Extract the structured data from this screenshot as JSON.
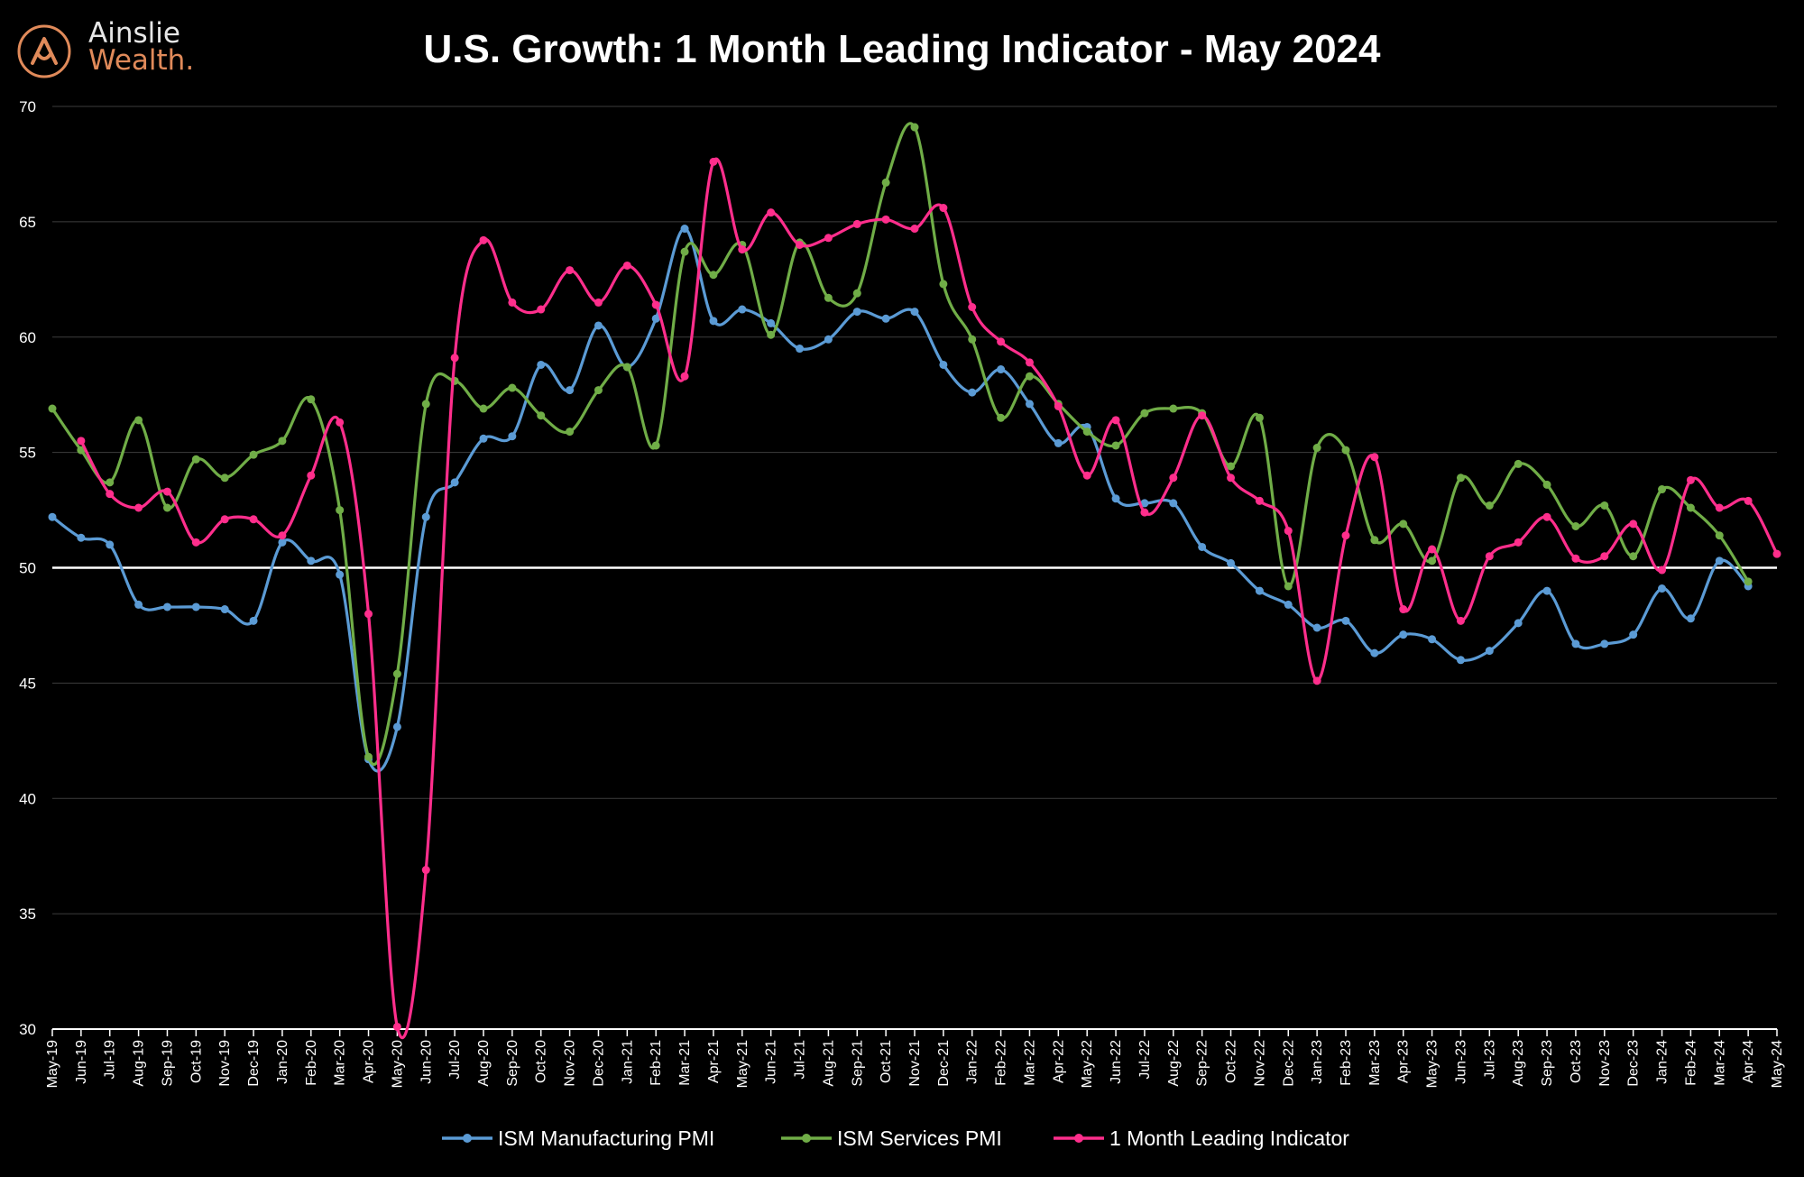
{
  "brand": {
    "name_line1": "Ainslie",
    "name_line2": "Wealth.",
    "logo_color": "#e08a5a"
  },
  "chart_data": {
    "type": "line",
    "title": "U.S. Growth: 1 Month Leading Indicator - May 2024",
    "xlabel": "",
    "ylabel": "",
    "ylim": [
      30,
      70
    ],
    "yticks": [
      30,
      35,
      40,
      45,
      50,
      55,
      60,
      65,
      70
    ],
    "grid": true,
    "legend_position": "bottom-center",
    "reference_line": {
      "y": 50,
      "color": "#ffffff"
    },
    "categories": [
      "May-19",
      "Jun-19",
      "Jul-19",
      "Aug-19",
      "Sep-19",
      "Oct-19",
      "Nov-19",
      "Dec-19",
      "Jan-20",
      "Feb-20",
      "Mar-20",
      "Apr-20",
      "May-20",
      "Jun-20",
      "Jul-20",
      "Aug-20",
      "Sep-20",
      "Oct-20",
      "Nov-20",
      "Dec-20",
      "Jan-21",
      "Feb-21",
      "Mar-21",
      "Apr-21",
      "May-21",
      "Jun-21",
      "Jul-21",
      "Aug-21",
      "Sep-21",
      "Oct-21",
      "Nov-21",
      "Dec-21",
      "Jan-22",
      "Feb-22",
      "Mar-22",
      "Apr-22",
      "May-22",
      "Jun-22",
      "Jul-22",
      "Aug-22",
      "Sep-22",
      "Oct-22",
      "Nov-22",
      "Dec-22",
      "Jan-23",
      "Feb-23",
      "Mar-23",
      "Apr-23",
      "May-23",
      "Jun-23",
      "Jul-23",
      "Aug-23",
      "Sep-23",
      "Oct-23",
      "Nov-23",
      "Dec-23",
      "Jan-24",
      "Feb-24",
      "Mar-24",
      "Apr-24",
      "May-24"
    ],
    "series": [
      {
        "name": "ISM Manufacturing PMI",
        "color": "#5b9bd5",
        "values": [
          52.2,
          51.3,
          51.0,
          48.4,
          48.3,
          48.3,
          48.2,
          47.7,
          51.1,
          50.3,
          49.7,
          41.7,
          43.1,
          52.2,
          53.7,
          55.6,
          55.7,
          58.8,
          57.7,
          60.5,
          58.7,
          60.8,
          64.7,
          60.7,
          61.2,
          60.6,
          59.5,
          59.9,
          61.1,
          60.8,
          61.1,
          58.8,
          57.6,
          58.6,
          57.1,
          55.4,
          56.1,
          53.0,
          52.8,
          52.8,
          50.9,
          50.2,
          49.0,
          48.4,
          47.4,
          47.7,
          46.3,
          47.1,
          46.9,
          46.0,
          46.4,
          47.6,
          49.0,
          46.7,
          46.7,
          47.1,
          49.1,
          47.8,
          50.3,
          49.2,
          null
        ]
      },
      {
        "name": "ISM Services PMI",
        "color": "#70ad47",
        "values": [
          56.9,
          55.1,
          53.7,
          56.4,
          52.6,
          54.7,
          53.9,
          54.9,
          55.5,
          57.3,
          52.5,
          41.8,
          45.4,
          57.1,
          58.1,
          56.9,
          57.8,
          56.6,
          55.9,
          57.7,
          58.7,
          55.3,
          63.7,
          62.7,
          64.0,
          60.1,
          64.1,
          61.7,
          61.9,
          66.7,
          69.1,
          62.3,
          59.9,
          56.5,
          58.3,
          57.1,
          55.9,
          55.3,
          56.7,
          56.9,
          56.7,
          54.4,
          56.5,
          49.2,
          55.2,
          55.1,
          51.2,
          51.9,
          50.3,
          53.9,
          52.7,
          54.5,
          53.6,
          51.8,
          52.7,
          50.5,
          53.4,
          52.6,
          51.4,
          49.4,
          null
        ]
      },
      {
        "name": "1 Month Leading Indicator",
        "color": "#ff2e8c",
        "values": [
          null,
          55.5,
          53.2,
          52.6,
          53.3,
          51.1,
          52.1,
          52.1,
          51.4,
          54.0,
          56.3,
          48.0,
          30.1,
          36.9,
          59.1,
          64.2,
          61.5,
          61.2,
          62.9,
          61.5,
          63.1,
          61.4,
          58.3,
          67.6,
          63.8,
          65.4,
          64.0,
          64.3,
          64.9,
          65.1,
          64.7,
          65.6,
          61.3,
          59.8,
          58.9,
          57.0,
          54.0,
          56.4,
          52.4,
          53.9,
          56.6,
          53.9,
          52.9,
          51.6,
          45.1,
          51.4,
          54.8,
          48.2,
          50.8,
          47.7,
          50.5,
          51.1,
          52.2,
          50.4,
          50.5,
          51.9,
          49.9,
          53.8,
          52.6,
          52.9,
          50.6
        ]
      }
    ]
  }
}
